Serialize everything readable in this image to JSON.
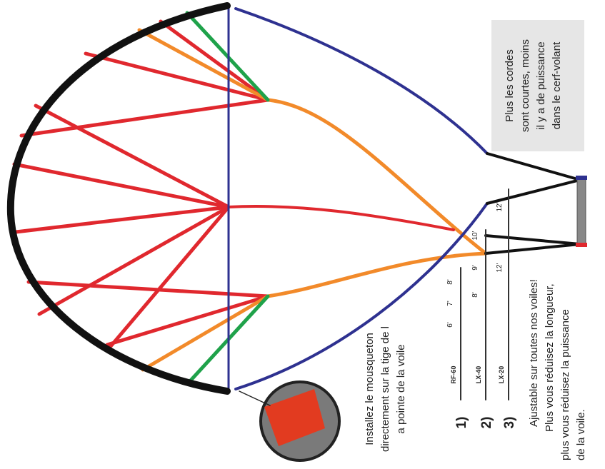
{
  "box_text": [
    "Plus les cordes",
    "sont courtes, moins",
    "il y a de puissance",
    "dans le cerf-volant"
  ],
  "install_text": [
    "Installez le mousqueton",
    "directement sur la tige de l",
    "a pointe de la voile"
  ],
  "adjust_text": [
    "Ajustable sur toutes nos voiles!",
    "Plus vous réduisez la longueur,",
    "plus vous réduisez la puissance",
    "de la voile."
  ],
  "lines": [
    {
      "number": "1)",
      "name": "RF-60",
      "marks": [
        "6'",
        "7'",
        "8'"
      ]
    },
    {
      "number": "2)",
      "name": "LX-40",
      "marks": [
        "8'",
        "9'",
        "10'"
      ]
    },
    {
      "number": "3)",
      "name": "LX-20",
      "marks": [
        "12'",
        "12'"
      ]
    }
  ]
}
